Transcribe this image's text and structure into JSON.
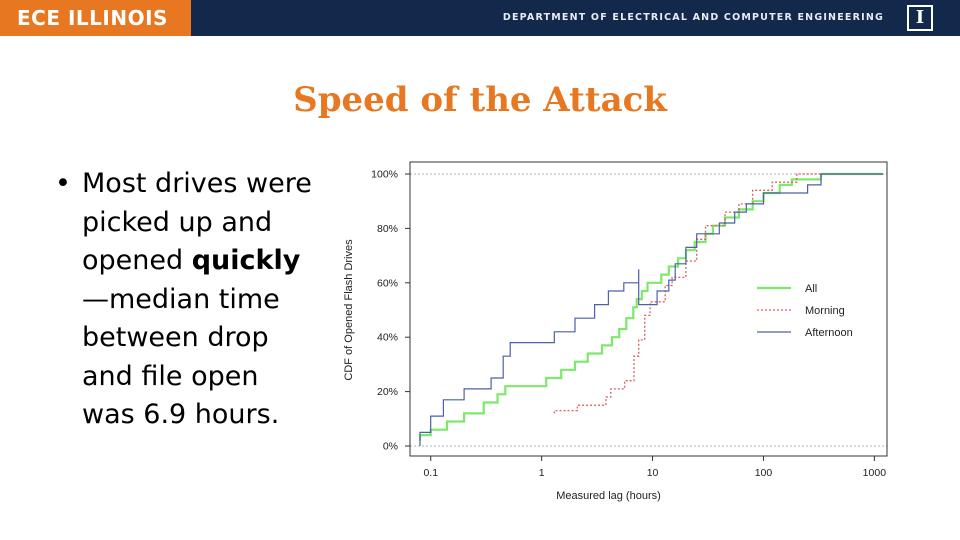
{
  "header": {
    "logo": "ECE ILLINOIS",
    "department": "DEPARTMENT OF ELECTRICAL AND COMPUTER ENGINEERING",
    "emblem": "I",
    "colors": {
      "bar": "#13294b",
      "accent": "#e87722"
    }
  },
  "slide": {
    "title": "Speed of the Attack",
    "bullet": {
      "marker": "•",
      "lines": [
        "Most drives were",
        "picked up and",
        "opened ",
        "—median time",
        "between drop",
        "and file open",
        "was 6.9 hours."
      ],
      "bold_word": "quickly"
    }
  },
  "chart_data": {
    "type": "line",
    "step": true,
    "xlabel": "Measured lag (hours)",
    "ylabel": "CDF of Opened Flash Drives",
    "xscale": "log",
    "xlim": [
      0.065,
      1300
    ],
    "ylim": [
      0,
      100
    ],
    "xticks": [
      0.1,
      1,
      10,
      100,
      1000
    ],
    "xtick_labels": [
      "0.1",
      "1",
      "10",
      "100",
      "1000"
    ],
    "yticks": [
      0,
      20,
      40,
      60,
      80,
      100
    ],
    "ytick_labels": [
      "0%",
      "20%",
      "40%",
      "60%",
      "80%",
      "100%"
    ],
    "reference_lines": [
      0,
      100
    ],
    "legend": {
      "placement": "right",
      "entries": [
        "All",
        "Morning",
        "Afternoon"
      ]
    },
    "series": [
      {
        "name": "All",
        "color": "#7ee86a",
        "dash": "",
        "width": 2.2,
        "points": [
          [
            0.08,
            2
          ],
          [
            0.08,
            4
          ],
          [
            0.1,
            4
          ],
          [
            0.1,
            6
          ],
          [
            0.14,
            6
          ],
          [
            0.14,
            9
          ],
          [
            0.2,
            9
          ],
          [
            0.2,
            12
          ],
          [
            0.3,
            12
          ],
          [
            0.3,
            16
          ],
          [
            0.4,
            16
          ],
          [
            0.4,
            19
          ],
          [
            0.47,
            19
          ],
          [
            0.47,
            22
          ],
          [
            1.1,
            22
          ],
          [
            1.1,
            25
          ],
          [
            1.5,
            25
          ],
          [
            1.5,
            28
          ],
          [
            2,
            28
          ],
          [
            2,
            31
          ],
          [
            2.6,
            31
          ],
          [
            2.6,
            34
          ],
          [
            3.5,
            34
          ],
          [
            3.5,
            37
          ],
          [
            4.3,
            37
          ],
          [
            4.3,
            40
          ],
          [
            5,
            40
          ],
          [
            5,
            43
          ],
          [
            5.8,
            43
          ],
          [
            5.8,
            47
          ],
          [
            6.7,
            47
          ],
          [
            6.7,
            51
          ],
          [
            7.2,
            51
          ],
          [
            7.2,
            54
          ],
          [
            8,
            54
          ],
          [
            8,
            57
          ],
          [
            9,
            57
          ],
          [
            9,
            60
          ],
          [
            12,
            60
          ],
          [
            12,
            63
          ],
          [
            14,
            63
          ],
          [
            14,
            66
          ],
          [
            17,
            66
          ],
          [
            17,
            69
          ],
          [
            20,
            69
          ],
          [
            20,
            72
          ],
          [
            24,
            72
          ],
          [
            24,
            75
          ],
          [
            30,
            75
          ],
          [
            30,
            78
          ],
          [
            35,
            78
          ],
          [
            35,
            81
          ],
          [
            45,
            81
          ],
          [
            45,
            84
          ],
          [
            60,
            84
          ],
          [
            60,
            87
          ],
          [
            80,
            87
          ],
          [
            80,
            90
          ],
          [
            100,
            90
          ],
          [
            100,
            93
          ],
          [
            140,
            93
          ],
          [
            140,
            96
          ],
          [
            180,
            96
          ],
          [
            180,
            98
          ],
          [
            330,
            98
          ],
          [
            330,
            100
          ],
          [
            1200,
            100
          ]
        ]
      },
      {
        "name": "Morning",
        "color": "#d86060",
        "dash": "2,2",
        "width": 1.3,
        "points": [
          [
            1.3,
            12
          ],
          [
            1.3,
            13
          ],
          [
            2.1,
            13
          ],
          [
            2.1,
            15
          ],
          [
            3.8,
            15
          ],
          [
            3.8,
            18
          ],
          [
            4.2,
            18
          ],
          [
            4.2,
            21
          ],
          [
            5.6,
            21
          ],
          [
            5.6,
            24
          ],
          [
            6.8,
            24
          ],
          [
            6.8,
            33
          ],
          [
            7.5,
            33
          ],
          [
            7.5,
            39
          ],
          [
            8.5,
            39
          ],
          [
            8.5,
            48
          ],
          [
            9.5,
            48
          ],
          [
            9.5,
            53
          ],
          [
            13,
            53
          ],
          [
            13,
            59
          ],
          [
            15,
            59
          ],
          [
            15,
            62
          ],
          [
            20,
            62
          ],
          [
            20,
            68
          ],
          [
            25,
            68
          ],
          [
            25,
            76
          ],
          [
            30,
            76
          ],
          [
            30,
            81
          ],
          [
            45,
            81
          ],
          [
            45,
            86
          ],
          [
            60,
            86
          ],
          [
            60,
            89
          ],
          [
            80,
            89
          ],
          [
            80,
            94
          ],
          [
            120,
            94
          ],
          [
            120,
            97
          ],
          [
            200,
            97
          ],
          [
            200,
            100
          ],
          [
            1200,
            100
          ]
        ]
      },
      {
        "name": "Afternoon",
        "color": "#4f5fa8",
        "dash": "",
        "width": 1.2,
        "points": [
          [
            0.08,
            0
          ],
          [
            0.08,
            5
          ],
          [
            0.1,
            5
          ],
          [
            0.1,
            11
          ],
          [
            0.13,
            11
          ],
          [
            0.13,
            17
          ],
          [
            0.2,
            17
          ],
          [
            0.2,
            21
          ],
          [
            0.35,
            21
          ],
          [
            0.35,
            25
          ],
          [
            0.45,
            25
          ],
          [
            0.45,
            33
          ],
          [
            0.52,
            33
          ],
          [
            0.52,
            38
          ],
          [
            1.3,
            38
          ],
          [
            1.3,
            42
          ],
          [
            2,
            42
          ],
          [
            2,
            47
          ],
          [
            3,
            47
          ],
          [
            3,
            52
          ],
          [
            4,
            52
          ],
          [
            4,
            57
          ],
          [
            5.5,
            57
          ],
          [
            5.5,
            60
          ],
          [
            7.5,
            60
          ],
          [
            7.5,
            65
          ],
          [
            7.5,
            52
          ],
          [
            11,
            52
          ],
          [
            11,
            57
          ],
          [
            14,
            57
          ],
          [
            14,
            61
          ],
          [
            16,
            61
          ],
          [
            16,
            67
          ],
          [
            20,
            67
          ],
          [
            20,
            73
          ],
          [
            25,
            73
          ],
          [
            25,
            78
          ],
          [
            40,
            78
          ],
          [
            40,
            82
          ],
          [
            55,
            82
          ],
          [
            55,
            86
          ],
          [
            70,
            86
          ],
          [
            70,
            89
          ],
          [
            100,
            89
          ],
          [
            100,
            93
          ],
          [
            250,
            93
          ],
          [
            250,
            96
          ],
          [
            330,
            96
          ],
          [
            330,
            100
          ],
          [
            1200,
            100
          ]
        ]
      }
    ]
  }
}
